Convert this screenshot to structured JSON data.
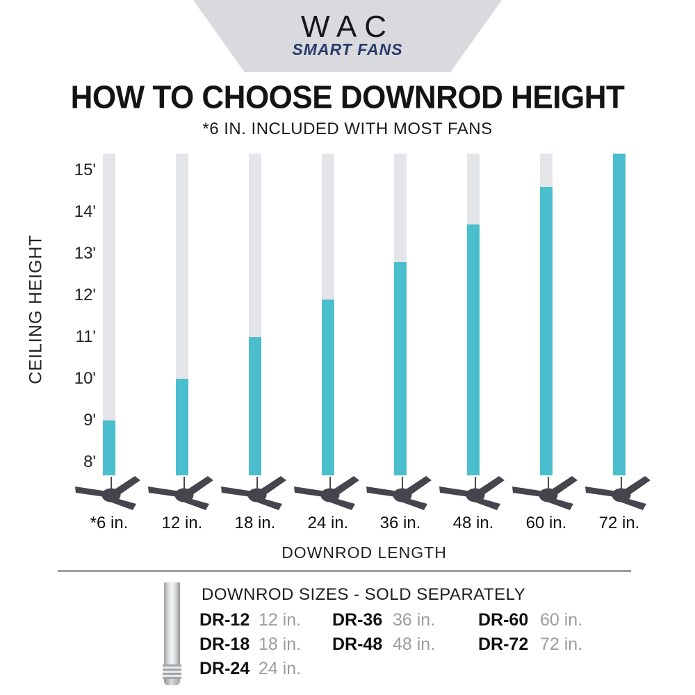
{
  "brand": {
    "logo_text": "WAC",
    "tagline": "SMART FANS"
  },
  "header": {
    "title": "HOW TO CHOOSE DOWNROD HEIGHT",
    "subtitle": "*6 IN. INCLUDED WITH MOST FANS"
  },
  "chart_data": {
    "type": "bar",
    "title": "HOW TO CHOOSE DOWNROD HEIGHT",
    "xlabel": "DOWNROD LENGTH",
    "ylabel": "CEILING HEIGHT",
    "categories": [
      "*6 in.",
      "12 in.",
      "18 in.",
      "24 in.",
      "36 in.",
      "48 in.",
      "60 in.",
      "72 in."
    ],
    "values": [
      9,
      10,
      11,
      11.9,
      12.8,
      13.7,
      14.6,
      15.4
    ],
    "values_unit": "ft",
    "values_meaning": "max ceiling height covered (top of teal segment); all bars start at chart bottom below 8 ft",
    "y_tick_labels": [
      "15'",
      "14'",
      "13'",
      "12'",
      "11'",
      "10'",
      "9'",
      "8'"
    ],
    "y_tick_values": [
      15,
      14,
      13,
      12,
      11,
      10,
      9,
      8
    ],
    "ylim": [
      7.7,
      15.4
    ],
    "grid": false,
    "legend": "none",
    "icon_under_each_bar": "ceiling-fan-icon",
    "colors": {
      "bar_fill": "#4bbecd",
      "bar_track": "#e4e5e9",
      "fan_silhouette": "#45454e"
    }
  },
  "footer": {
    "heading": "DOWNROD SIZES - SOLD SEPARATELY",
    "rod_image": "downrod-illustration",
    "items": [
      {
        "code": "DR-12",
        "size": "12 in."
      },
      {
        "code": "DR-18",
        "size": "18 in."
      },
      {
        "code": "DR-24",
        "size": "24 in."
      },
      {
        "code": "DR-36",
        "size": "36 in."
      },
      {
        "code": "DR-48",
        "size": "48 in."
      },
      {
        "code": "DR-60",
        "size": "60 in."
      },
      {
        "code": "DR-72",
        "size": "72 in."
      }
    ]
  }
}
